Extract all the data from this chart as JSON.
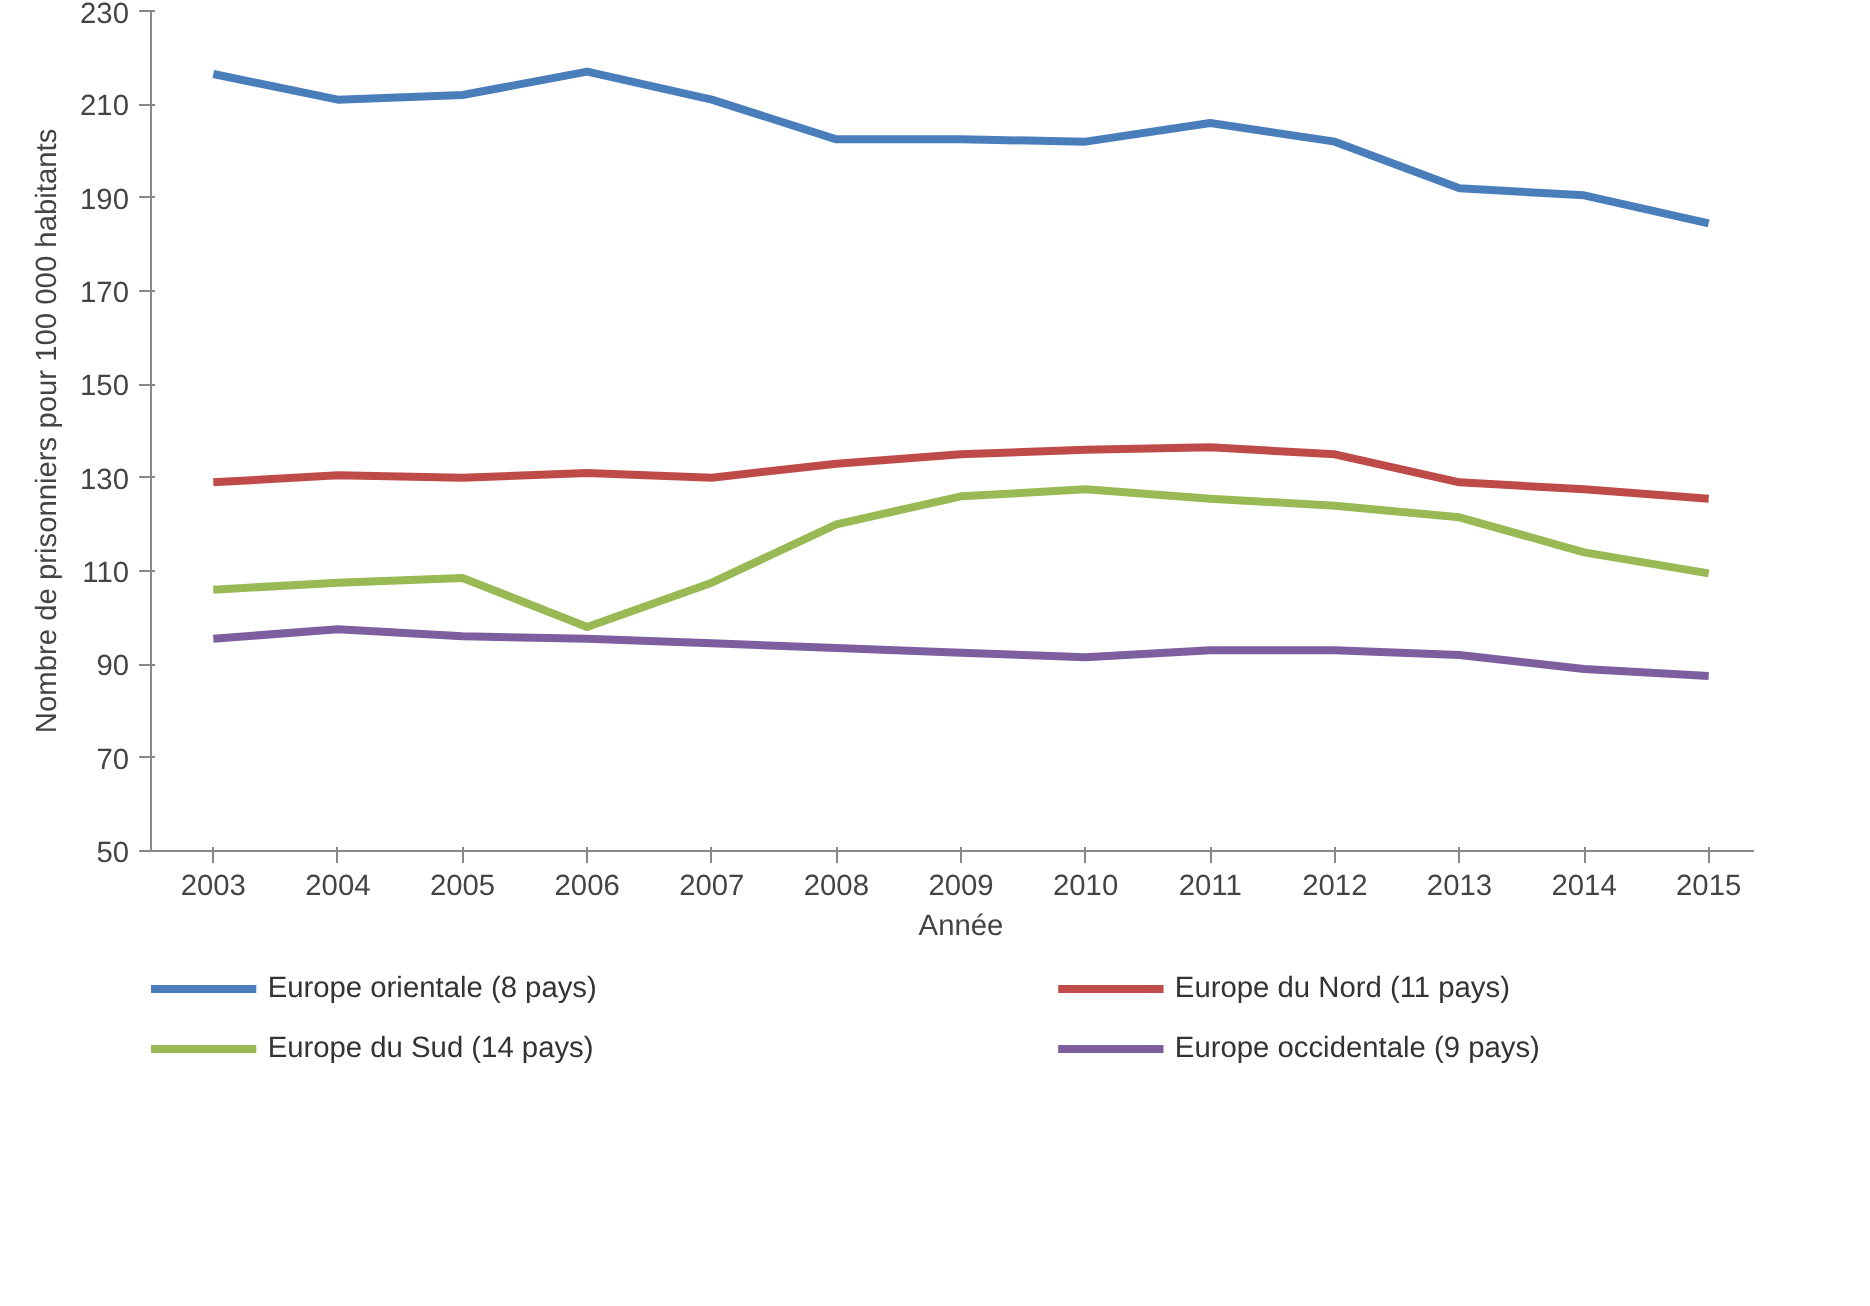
{
  "chart_data": {
    "type": "line",
    "xlabel": "Année",
    "ylabel": "Nombre de prisonniers pour 100 000 habitants",
    "categories": [
      "2003",
      "2004",
      "2005",
      "2006",
      "2007",
      "2008",
      "2009",
      "2010",
      "2011",
      "2012",
      "2013",
      "2014",
      "2015"
    ],
    "series": [
      {
        "name": "Europe orientale (8 pays)",
        "color": "#4a7ebb",
        "values": [
          216.5,
          211,
          212,
          217,
          211,
          202.5,
          202.5,
          202,
          206,
          202,
          192,
          190.5,
          184.5
        ]
      },
      {
        "name": "Europe du Nord (11 pays)",
        "color": "#be4b48",
        "values": [
          129,
          130.5,
          130,
          131,
          130,
          133,
          135,
          136,
          136.5,
          135,
          129,
          127.5,
          125.5
        ]
      },
      {
        "name": "Europe du Sud (14 pays)",
        "color": "#98b954",
        "values": [
          106,
          107.5,
          108.5,
          98,
          107.5,
          120,
          126,
          127.5,
          125.5,
          124,
          121.5,
          114,
          109.5
        ]
      },
      {
        "name": "Europe occidentale (9 pays)",
        "color": "#7d5fa0",
        "values": [
          95.5,
          97.5,
          96,
          95.5,
          94.5,
          93.5,
          92.5,
          91.5,
          93,
          93,
          92,
          89,
          87.5
        ]
      }
    ],
    "ylim": [
      50,
      230
    ],
    "yticks": [
      50,
      70,
      90,
      110,
      130,
      150,
      170,
      190,
      210,
      230
    ],
    "grid": false,
    "legend": "bottom",
    "marker": "none",
    "line_style": "solid"
  }
}
